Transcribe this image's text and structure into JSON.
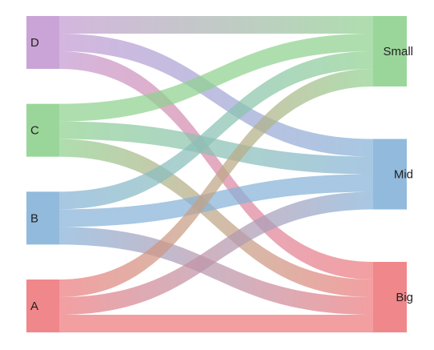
{
  "sankey": {
    "source_nodes": [
      {
        "id": "D",
        "label": "D",
        "color": "#c49ad2"
      },
      {
        "id": "C",
        "label": "C",
        "color": "#8fd18f"
      },
      {
        "id": "B",
        "label": "B",
        "color": "#86b2d8"
      },
      {
        "id": "A",
        "label": "A",
        "color": "#ee7a7d"
      }
    ],
    "target_nodes": [
      {
        "id": "Small",
        "label": "Small",
        "color": "#8fd18f"
      },
      {
        "id": "Mid",
        "label": "Mid",
        "color": "#86b2d8"
      },
      {
        "id": "Big",
        "label": "Big",
        "color": "#ee7a7d"
      }
    ],
    "links": [
      {
        "source": "D",
        "target": "Small",
        "value": 2
      },
      {
        "source": "D",
        "target": "Mid",
        "value": 2
      },
      {
        "source": "D",
        "target": "Big",
        "value": 2
      },
      {
        "source": "C",
        "target": "Small",
        "value": 2
      },
      {
        "source": "C",
        "target": "Mid",
        "value": 2
      },
      {
        "source": "C",
        "target": "Big",
        "value": 2
      },
      {
        "source": "B",
        "target": "Small",
        "value": 2
      },
      {
        "source": "B",
        "target": "Mid",
        "value": 2
      },
      {
        "source": "B",
        "target": "Big",
        "value": 2
      },
      {
        "source": "A",
        "target": "Small",
        "value": 2
      },
      {
        "source": "A",
        "target": "Mid",
        "value": 2
      },
      {
        "source": "A",
        "target": "Big",
        "value": 2
      }
    ]
  }
}
